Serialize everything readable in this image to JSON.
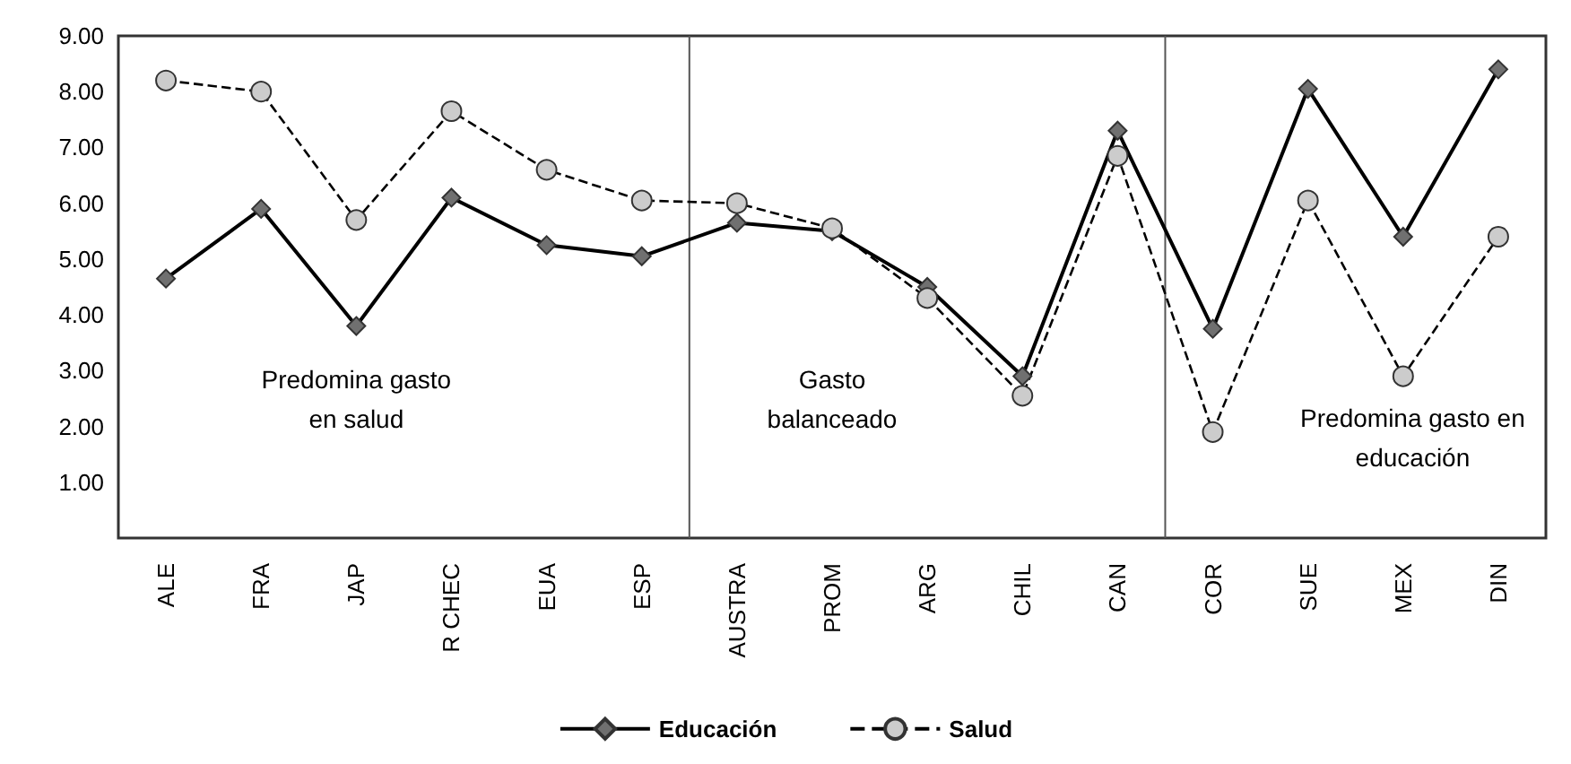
{
  "chart_data": {
    "type": "line",
    "categories": [
      "ALE",
      "FRA",
      "JAP",
      "R CHEC",
      "EUA",
      "ESP",
      "AUSTRA",
      "PROM",
      "ARG",
      "CHIL",
      "CAN",
      "COR",
      "SUE",
      "MEX",
      "DIN"
    ],
    "series": [
      {
        "name": "Educación",
        "color": "#000000",
        "marker": "diamond",
        "line_style": "solid",
        "values": [
          4.65,
          5.9,
          3.8,
          6.1,
          5.25,
          5.05,
          5.65,
          5.5,
          4.5,
          2.9,
          7.3,
          3.75,
          8.05,
          5.4,
          8.4
        ]
      },
      {
        "name": "Salud",
        "color": "#000000",
        "marker": "circle",
        "line_style": "dashed",
        "values": [
          8.2,
          8.0,
          5.7,
          7.65,
          6.6,
          6.05,
          6.0,
          5.55,
          4.3,
          2.55,
          6.85,
          1.9,
          6.05,
          2.9,
          5.4
        ]
      }
    ],
    "ylim": [
      0,
      9
    ],
    "yticks": [
      {
        "value": 1,
        "label": "1.00"
      },
      {
        "value": 2,
        "label": "2.00"
      },
      {
        "value": 3,
        "label": "3.00"
      },
      {
        "value": 4,
        "label": "4.00"
      },
      {
        "value": 5,
        "label": "5.00"
      },
      {
        "value": 6,
        "label": "6.00"
      },
      {
        "value": 7,
        "label": "7.00"
      },
      {
        "value": 8,
        "label": "8.00"
      },
      {
        "value": 9,
        "label": "9.00"
      }
    ],
    "annotations": [
      "Predomina gasto\nen salud",
      "Gasto\nbalanceado",
      "Predomina gasto en\neducación"
    ],
    "grid": false,
    "legend": "bottom"
  }
}
